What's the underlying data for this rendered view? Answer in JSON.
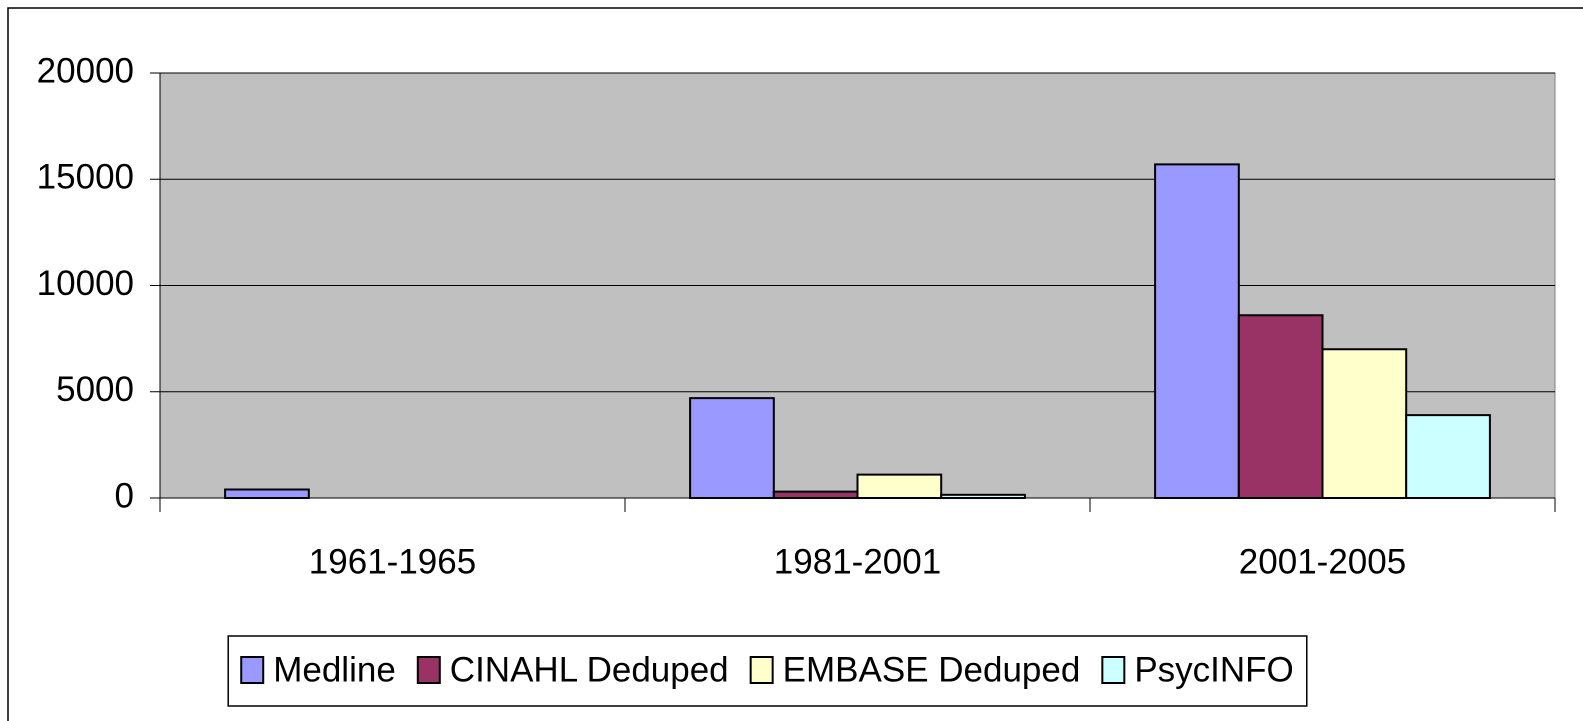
{
  "chart_data": {
    "type": "bar",
    "categories": [
      "1961-1965",
      "1981-2001",
      "2001-2005"
    ],
    "series": [
      {
        "name": "Medline",
        "color": "#9999ff",
        "values": [
          400,
          4700,
          15700
        ]
      },
      {
        "name": "CINAHL Deduped",
        "color": "#993366",
        "values": [
          0,
          300,
          8600
        ]
      },
      {
        "name": "EMBASE Deduped",
        "color": "#ffffcc",
        "values": [
          0,
          1100,
          7000
        ]
      },
      {
        "name": "PsycINFO",
        "color": "#ccffff",
        "values": [
          0,
          150,
          3900
        ]
      }
    ],
    "ylim": [
      0,
      20000
    ],
    "yticks": [
      0,
      5000,
      10000,
      15000,
      20000
    ],
    "grid": true,
    "plot_background": "#c0c0c0",
    "legend": "bottom"
  }
}
